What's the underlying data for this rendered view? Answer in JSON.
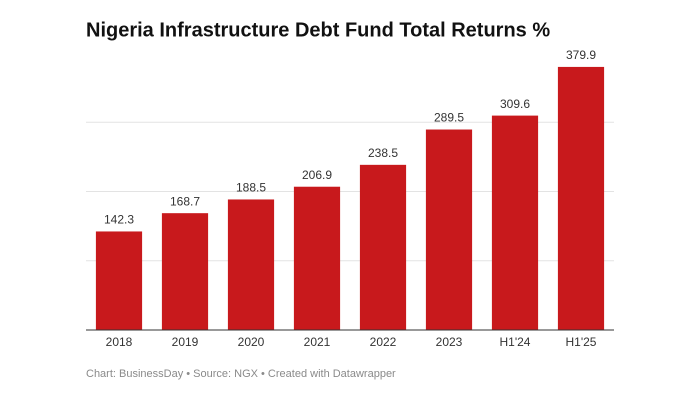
{
  "chart_data": {
    "type": "bar",
    "title": "Nigeria Infrastructure Debt Fund Total Returns %",
    "categories": [
      "2018",
      "2019",
      "2020",
      "2021",
      "2022",
      "2023",
      "H1'24",
      "H1'25"
    ],
    "values": [
      142.3,
      168.7,
      188.5,
      206.9,
      238.5,
      289.5,
      309.6,
      379.9
    ],
    "color": "#c8191c",
    "ylim": [
      0,
      400
    ],
    "yticks": [
      100,
      200,
      300
    ],
    "tick_labels": false,
    "grid": true,
    "source": "Chart: BusinessDay • Source: NGX • Created with Datawrapper"
  }
}
